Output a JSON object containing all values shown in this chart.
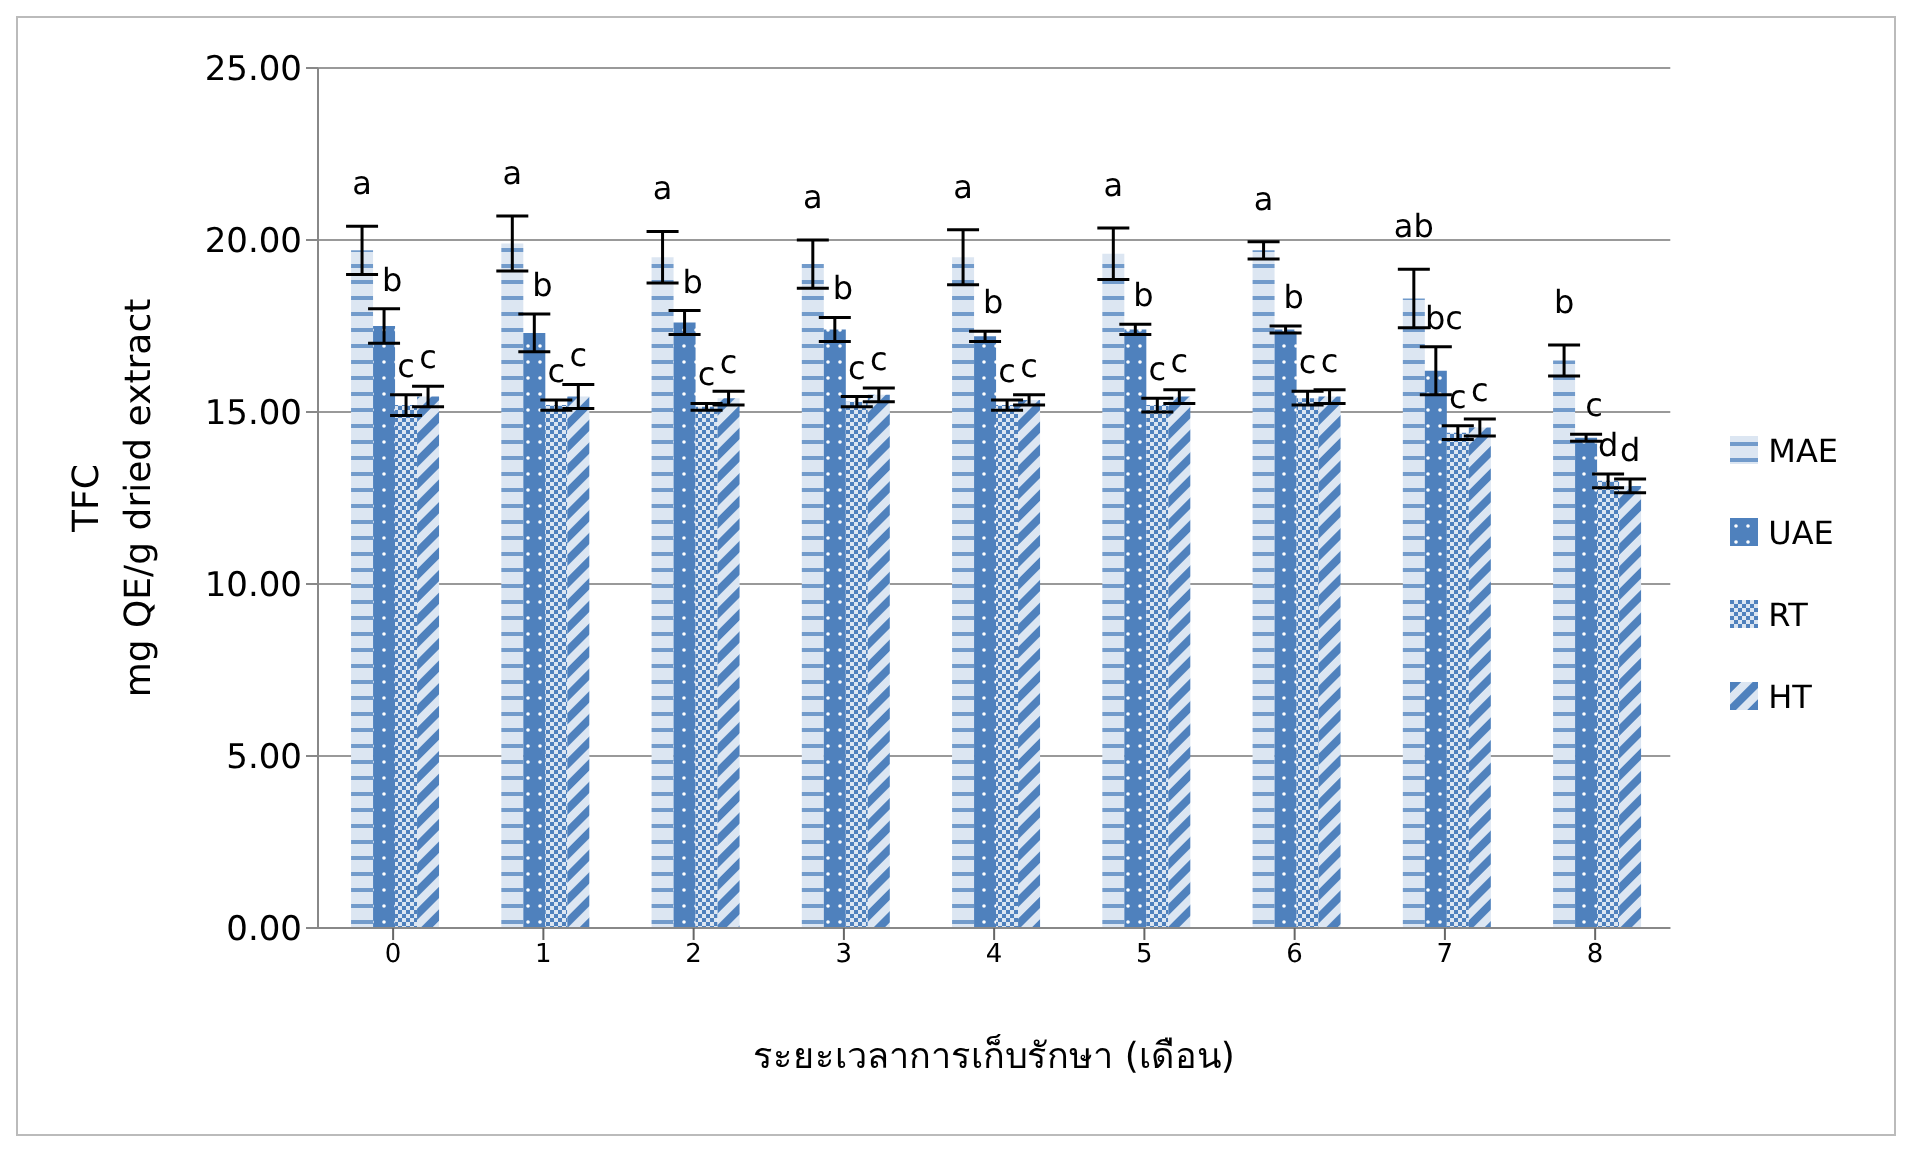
{
  "chart_data": {
    "type": "bar",
    "ylabel": "TFC\nmg QE/g dried extract",
    "xlabel": "ระยะเวลาการเก็บรักษา (เดือน)",
    "categories": [
      "0",
      "1",
      "2",
      "3",
      "4",
      "5",
      "6",
      "7",
      "8"
    ],
    "series": [
      {
        "name": "MAE",
        "color": "#4f81bd",
        "values": [
          19.7,
          19.9,
          19.5,
          19.3,
          19.5,
          19.6,
          19.7,
          18.3,
          16.5
        ],
        "errors": [
          0.7,
          0.8,
          0.75,
          0.7,
          0.8,
          0.75,
          0.25,
          0.85,
          0.45
        ]
      },
      {
        "name": "UAE",
        "color": "#4f81bd",
        "values": [
          17.5,
          17.3,
          17.6,
          17.4,
          17.2,
          17.4,
          17.4,
          16.2,
          14.25
        ],
        "errors": [
          0.5,
          0.55,
          0.35,
          0.35,
          0.15,
          0.15,
          0.1,
          0.7,
          0.1
        ]
      },
      {
        "name": "RT",
        "color": "#4f81bd",
        "values": [
          15.2,
          15.2,
          15.15,
          15.3,
          15.2,
          15.2,
          15.4,
          14.4,
          13.0
        ],
        "errors": [
          0.3,
          0.15,
          0.1,
          0.15,
          0.15,
          0.2,
          0.2,
          0.2,
          0.2
        ]
      },
      {
        "name": "HT",
        "color": "#4f81bd",
        "values": [
          15.45,
          15.45,
          15.4,
          15.5,
          15.35,
          15.45,
          15.45,
          14.55,
          12.85
        ],
        "errors": [
          0.3,
          0.35,
          0.2,
          0.2,
          0.15,
          0.2,
          0.2,
          0.25,
          0.2
        ]
      }
    ],
    "ylim": [
      0,
      25
    ],
    "yticks": [
      {
        "value": 0,
        "label": "0.00"
      },
      {
        "value": 5,
        "label": "5.00"
      },
      {
        "value": 10,
        "label": "10.00"
      },
      {
        "value": 15,
        "label": "15.00"
      },
      {
        "value": 20,
        "label": "20.00"
      },
      {
        "value": 25,
        "label": "25.00"
      }
    ],
    "grid": "y",
    "legend": "right",
    "annotations": [
      "a",
      "b",
      "c",
      "c",
      "a",
      "b",
      "c",
      "c",
      "a",
      "b",
      "c",
      "c",
      "a",
      "b",
      "c",
      "c",
      "a",
      "b",
      "c",
      "c",
      "a",
      "b",
      "c",
      "c",
      "a",
      "b",
      "c",
      "c",
      "ab",
      "bc",
      "c",
      "c",
      "b",
      "c",
      "d",
      "d"
    ]
  }
}
